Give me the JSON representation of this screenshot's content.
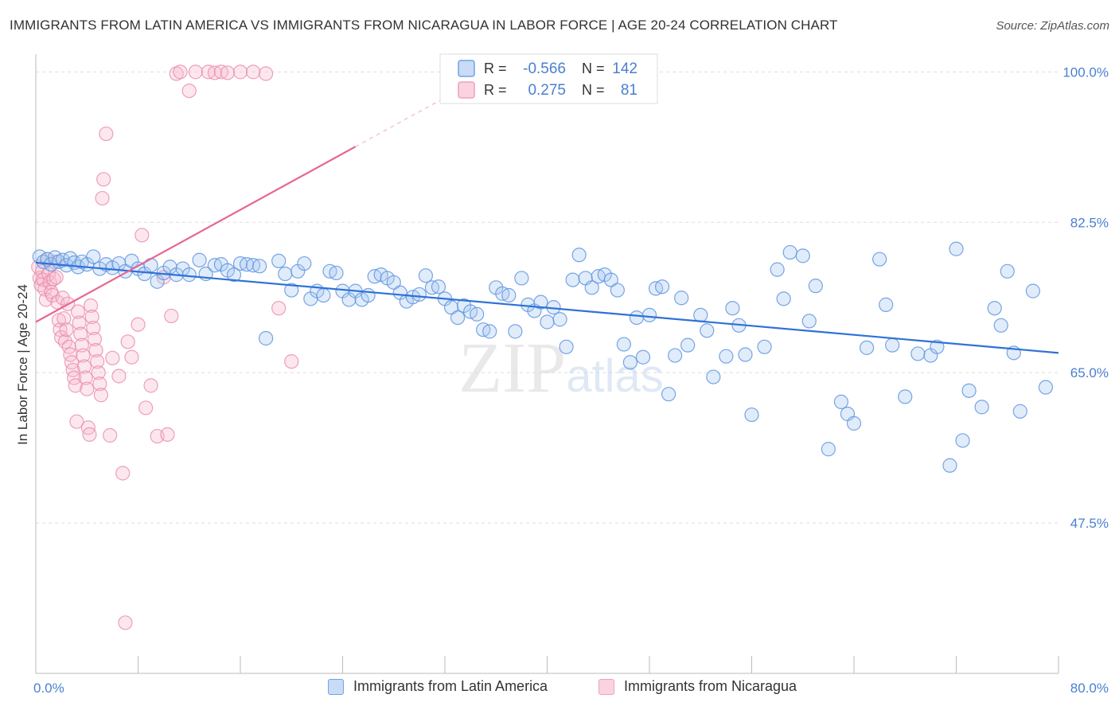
{
  "title": "IMMIGRANTS FROM LATIN AMERICA VS IMMIGRANTS FROM NICARAGUA IN LABOR FORCE | AGE 20-24 CORRELATION CHART",
  "source": "Source: ZipAtlas.com",
  "watermark": "ZIPatlas",
  "colors": {
    "blue": "#6fa3e8",
    "blue_line": "#2f72d6",
    "pink": "#f0a0bb",
    "pink_line": "#e8668f",
    "axis_text": "#4a7fd0"
  },
  "chart_data": {
    "type": "scatter",
    "title": "IMMIGRANTS FROM LATIN AMERICA VS IMMIGRANTS FROM NICARAGUA IN LABOR FORCE | AGE 20-24 CORRELATION CHART",
    "ylabel": "In Labor Force | Age 20-24",
    "xlabel": "",
    "xlim": [
      0,
      80
    ],
    "ylim": [
      30,
      101.7
    ],
    "y_ticks": [
      "100.0%",
      "82.5%",
      "65.0%",
      "47.5%"
    ],
    "y_tick_values": [
      100,
      82.5,
      65,
      47.5
    ],
    "x_tick_labels": [
      "0.0%",
      "80.0%"
    ],
    "grid": true,
    "legend": {
      "position": "top-center",
      "rows": [
        {
          "r_label": "R =",
          "r_value": "-0.566",
          "n_label": "N =",
          "n_value": "142"
        },
        {
          "r_label": "R =",
          "r_value": "0.275",
          "n_label": "N =",
          "n_value": "81"
        }
      ]
    },
    "series": [
      {
        "name": "Immigrants from Latin America",
        "color": "#6fa3e8",
        "r": -0.566,
        "n": 142,
        "trend": {
          "x": [
            0,
            80
          ],
          "y": [
            77.8,
            67.3
          ]
        },
        "points": [
          [
            0.3,
            78.5
          ],
          [
            0.6,
            77.9
          ],
          [
            0.9,
            78.2
          ],
          [
            1.2,
            77.6
          ],
          [
            1.5,
            78.4
          ],
          [
            1.8,
            77.9
          ],
          [
            2.1,
            78.1
          ],
          [
            2.4,
            77.5
          ],
          [
            2.7,
            78.3
          ],
          [
            3.0,
            77.8
          ],
          [
            3.3,
            77.3
          ],
          [
            3.6,
            77.9
          ],
          [
            4.0,
            77.6
          ],
          [
            4.5,
            78.5
          ],
          [
            5.0,
            77.1
          ],
          [
            5.5,
            77.6
          ],
          [
            6.0,
            77.2
          ],
          [
            6.5,
            77.7
          ],
          [
            7.0,
            76.8
          ],
          [
            7.5,
            78.0
          ],
          [
            8.0,
            77.1
          ],
          [
            8.5,
            76.5
          ],
          [
            9.0,
            77.5
          ],
          [
            9.5,
            75.6
          ],
          [
            10.0,
            76.6
          ],
          [
            10.5,
            77.3
          ],
          [
            11.0,
            76.4
          ],
          [
            11.5,
            77.1
          ],
          [
            12.0,
            76.4
          ],
          [
            12.8,
            78.1
          ],
          [
            13.3,
            76.5
          ],
          [
            14.0,
            77.5
          ],
          [
            14.5,
            77.6
          ],
          [
            15.0,
            76.9
          ],
          [
            15.5,
            76.4
          ],
          [
            16.0,
            77.7
          ],
          [
            16.5,
            77.6
          ],
          [
            17.0,
            77.5
          ],
          [
            17.5,
            77.4
          ],
          [
            18.0,
            69.0
          ],
          [
            19.0,
            78.0
          ],
          [
            19.5,
            76.5
          ],
          [
            20.0,
            74.6
          ],
          [
            20.5,
            76.8
          ],
          [
            21.0,
            77.7
          ],
          [
            21.5,
            73.6
          ],
          [
            22.0,
            74.5
          ],
          [
            22.5,
            74.0
          ],
          [
            23.0,
            76.8
          ],
          [
            23.5,
            76.6
          ],
          [
            24.0,
            74.5
          ],
          [
            24.5,
            73.5
          ],
          [
            25.0,
            74.5
          ],
          [
            25.5,
            73.5
          ],
          [
            26.0,
            74.0
          ],
          [
            26.5,
            76.2
          ],
          [
            27.0,
            76.4
          ],
          [
            27.5,
            76.0
          ],
          [
            28.0,
            75.5
          ],
          [
            28.5,
            74.3
          ],
          [
            29.0,
            73.3
          ],
          [
            29.5,
            73.8
          ],
          [
            30.0,
            74.1
          ],
          [
            30.5,
            76.3
          ],
          [
            31.0,
            74.9
          ],
          [
            31.5,
            75.0
          ],
          [
            32.0,
            73.6
          ],
          [
            32.5,
            72.6
          ],
          [
            33.0,
            71.4
          ],
          [
            33.5,
            72.8
          ],
          [
            34.0,
            72.1
          ],
          [
            34.5,
            71.8
          ],
          [
            35.0,
            70.0
          ],
          [
            35.5,
            69.8
          ],
          [
            36.0,
            74.9
          ],
          [
            36.5,
            74.2
          ],
          [
            37.0,
            74.0
          ],
          [
            37.5,
            69.8
          ],
          [
            38.0,
            76.0
          ],
          [
            38.5,
            72.9
          ],
          [
            39.0,
            72.2
          ],
          [
            39.5,
            73.2
          ],
          [
            40.0,
            70.9
          ],
          [
            40.5,
            72.6
          ],
          [
            41.0,
            71.2
          ],
          [
            41.5,
            68.0
          ],
          [
            42.0,
            75.8
          ],
          [
            42.5,
            78.7
          ],
          [
            43.0,
            76.0
          ],
          [
            43.5,
            74.9
          ],
          [
            44.0,
            76.2
          ],
          [
            44.5,
            76.4
          ],
          [
            45.0,
            75.8
          ],
          [
            45.5,
            74.6
          ],
          [
            46.0,
            68.3
          ],
          [
            46.5,
            66.2
          ],
          [
            47.0,
            71.4
          ],
          [
            47.5,
            66.8
          ],
          [
            48.0,
            71.7
          ],
          [
            48.5,
            74.8
          ],
          [
            49.0,
            75.0
          ],
          [
            49.5,
            62.5
          ],
          [
            50.0,
            67.0
          ],
          [
            50.5,
            73.7
          ],
          [
            51.0,
            68.2
          ],
          [
            52.0,
            71.7
          ],
          [
            52.5,
            69.9
          ],
          [
            53.0,
            64.5
          ],
          [
            54.0,
            66.9
          ],
          [
            54.5,
            72.5
          ],
          [
            55.0,
            70.5
          ],
          [
            55.5,
            67.1
          ],
          [
            56.0,
            60.1
          ],
          [
            57.0,
            68.0
          ],
          [
            58.0,
            77.0
          ],
          [
            58.5,
            73.6
          ],
          [
            59.0,
            79.0
          ],
          [
            60.0,
            78.6
          ],
          [
            60.5,
            71.0
          ],
          [
            61.0,
            75.1
          ],
          [
            62.0,
            56.1
          ],
          [
            63.0,
            61.6
          ],
          [
            63.5,
            60.2
          ],
          [
            64.0,
            59.1
          ],
          [
            65.0,
            67.9
          ],
          [
            66.0,
            78.2
          ],
          [
            66.5,
            72.9
          ],
          [
            67.0,
            68.2
          ],
          [
            68.0,
            62.2
          ],
          [
            69.0,
            67.2
          ],
          [
            70.0,
            67.0
          ],
          [
            70.5,
            68.0
          ],
          [
            71.5,
            54.2
          ],
          [
            72.0,
            79.4
          ],
          [
            72.5,
            57.1
          ],
          [
            73.0,
            62.9
          ],
          [
            74.0,
            61.0
          ],
          [
            75.0,
            72.5
          ],
          [
            75.5,
            70.5
          ],
          [
            76.0,
            76.8
          ],
          [
            76.5,
            67.3
          ],
          [
            77.0,
            60.5
          ],
          [
            78.0,
            74.5
          ],
          [
            79.0,
            63.3
          ]
        ]
      },
      {
        "name": "Immigrants from Nicaragua",
        "color": "#f0a0bb",
        "r": 0.275,
        "n": 81,
        "trend": {
          "x": [
            0,
            25
          ],
          "y": [
            70.9,
            91.3
          ],
          "dash_to": {
            "x": 32,
            "y": 97.0
          }
        },
        "points": [
          [
            0.2,
            77.3
          ],
          [
            0.3,
            76.0
          ],
          [
            0.4,
            75.2
          ],
          [
            0.5,
            76.8
          ],
          [
            0.6,
            75.8
          ],
          [
            0.7,
            74.7
          ],
          [
            0.8,
            73.5
          ],
          [
            0.9,
            78.2
          ],
          [
            1.0,
            76.5
          ],
          [
            1.1,
            75.5
          ],
          [
            1.2,
            74.4
          ],
          [
            1.3,
            74.0
          ],
          [
            1.4,
            75.9
          ],
          [
            1.5,
            77.9
          ],
          [
            1.6,
            76.1
          ],
          [
            1.7,
            73.2
          ],
          [
            1.8,
            71.1
          ],
          [
            1.9,
            70.0
          ],
          [
            2.0,
            69.1
          ],
          [
            2.1,
            73.7
          ],
          [
            2.2,
            71.3
          ],
          [
            2.3,
            68.6
          ],
          [
            2.4,
            70.0
          ],
          [
            2.5,
            73.0
          ],
          [
            2.6,
            68.0
          ],
          [
            2.7,
            67.1
          ],
          [
            2.8,
            66.2
          ],
          [
            2.9,
            65.3
          ],
          [
            3.0,
            64.4
          ],
          [
            3.1,
            63.5
          ],
          [
            3.2,
            59.3
          ],
          [
            3.3,
            72.1
          ],
          [
            3.4,
            70.8
          ],
          [
            3.5,
            69.5
          ],
          [
            3.6,
            68.2
          ],
          [
            3.7,
            67.0
          ],
          [
            3.8,
            65.7
          ],
          [
            3.9,
            64.4
          ],
          [
            4.0,
            63.1
          ],
          [
            4.1,
            58.6
          ],
          [
            4.2,
            57.8
          ],
          [
            4.3,
            72.8
          ],
          [
            4.4,
            71.5
          ],
          [
            4.5,
            70.2
          ],
          [
            4.6,
            68.9
          ],
          [
            4.7,
            67.6
          ],
          [
            4.8,
            66.3
          ],
          [
            4.9,
            65.0
          ],
          [
            5.0,
            63.7
          ],
          [
            5.1,
            62.4
          ],
          [
            5.2,
            85.3
          ],
          [
            5.3,
            87.5
          ],
          [
            5.5,
            92.8
          ],
          [
            5.8,
            57.7
          ],
          [
            6.0,
            66.7
          ],
          [
            6.5,
            64.6
          ],
          [
            6.8,
            53.3
          ],
          [
            7.0,
            35.9
          ],
          [
            7.2,
            68.6
          ],
          [
            7.5,
            66.8
          ],
          [
            8.0,
            70.6
          ],
          [
            8.3,
            81.0
          ],
          [
            8.6,
            60.9
          ],
          [
            9.0,
            63.5
          ],
          [
            9.5,
            57.6
          ],
          [
            10.0,
            76.1
          ],
          [
            10.3,
            57.8
          ],
          [
            10.6,
            71.6
          ],
          [
            11.0,
            99.8
          ],
          [
            11.3,
            100.0
          ],
          [
            12.0,
            97.8
          ],
          [
            12.5,
            100.0
          ],
          [
            13.5,
            100.0
          ],
          [
            14.0,
            99.9
          ],
          [
            14.5,
            100.0
          ],
          [
            15.0,
            99.9
          ],
          [
            16.0,
            100.0
          ],
          [
            17.0,
            100.0
          ],
          [
            18.0,
            99.8
          ],
          [
            19.0,
            72.5
          ],
          [
            20.0,
            66.3
          ]
        ]
      }
    ]
  }
}
